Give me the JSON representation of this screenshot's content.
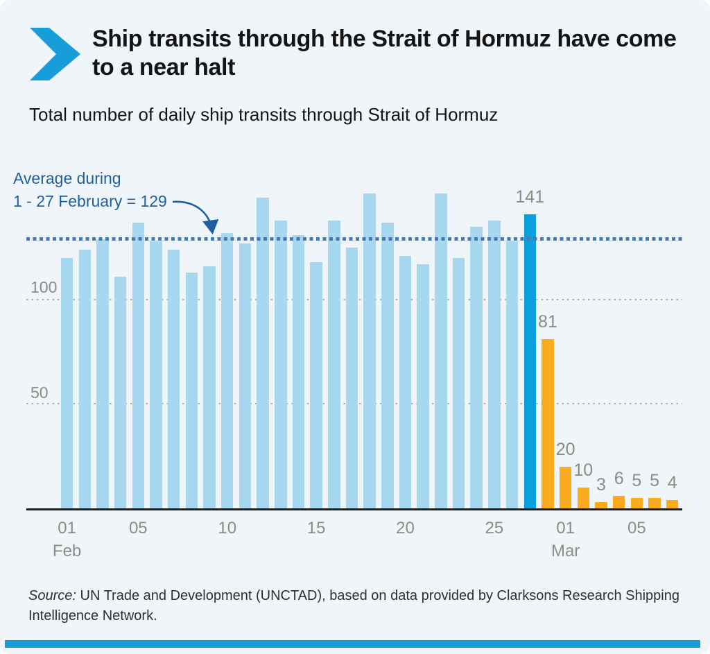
{
  "header": {
    "title": "Ship transits through the Strait of Hormuz have come to a near halt",
    "subtitle": "Total number of daily ship transits through Strait of Hormuz"
  },
  "annotation": {
    "line1": "Average during",
    "line2": "1 - 27 February = 129"
  },
  "axis": {
    "y_labels": [
      "100",
      "50"
    ],
    "month_labels": [
      "Feb",
      "Mar"
    ]
  },
  "source": {
    "prefix": "Source:",
    "text": " UN Trade and Development (UNCTAD), based on data provided by Clarksons Research Shipping Intelligence Network."
  },
  "colors": {
    "background": "#F0F5FA",
    "light_bar": "#A8D8F0",
    "dark_bar": "#0AA0DC",
    "orange_bar": "#FAAB1E",
    "average_line": "#4B7BAD",
    "annotation_blue": "#1F5F9F",
    "grid_dots": "#ADADA5",
    "label_grey": "#8C8C85",
    "accent_stripe": "#189DD9"
  },
  "chart_data": {
    "type": "bar",
    "title": "Total number of daily ship transits through Strait of Hormuz",
    "ylabel": "",
    "xlabel": "",
    "ylim": [
      0,
      160
    ],
    "gridlines": [
      50,
      100
    ],
    "grid": true,
    "legend_position": "none",
    "average_line": {
      "value": 129,
      "label": "Average during 1 - 27 February = 129"
    },
    "bars": [
      {
        "day": "Feb 01",
        "value": 120,
        "type": "light"
      },
      {
        "day": "Feb 02",
        "value": 124,
        "type": "light"
      },
      {
        "day": "Feb 03",
        "value": 129,
        "type": "light"
      },
      {
        "day": "Feb 04",
        "value": 111,
        "type": "light"
      },
      {
        "day": "Feb 05",
        "value": 137,
        "type": "light"
      },
      {
        "day": "Feb 06",
        "value": 128,
        "type": "light"
      },
      {
        "day": "Feb 07",
        "value": 124,
        "type": "light"
      },
      {
        "day": "Feb 08",
        "value": 113,
        "type": "light"
      },
      {
        "day": "Feb 09",
        "value": 116,
        "type": "light"
      },
      {
        "day": "Feb 10",
        "value": 132,
        "type": "light"
      },
      {
        "day": "Feb 11",
        "value": 127,
        "type": "light"
      },
      {
        "day": "Feb 12",
        "value": 149,
        "type": "light"
      },
      {
        "day": "Feb 13",
        "value": 138,
        "type": "light"
      },
      {
        "day": "Feb 14",
        "value": 131,
        "type": "light"
      },
      {
        "day": "Feb 15",
        "value": 118,
        "type": "light"
      },
      {
        "day": "Feb 16",
        "value": 138,
        "type": "light"
      },
      {
        "day": "Feb 17",
        "value": 125,
        "type": "light"
      },
      {
        "day": "Feb 18",
        "value": 151,
        "type": "light"
      },
      {
        "day": "Feb 19",
        "value": 137,
        "type": "light"
      },
      {
        "day": "Feb 20",
        "value": 121,
        "type": "light"
      },
      {
        "day": "Feb 21",
        "value": 117,
        "type": "light"
      },
      {
        "day": "Feb 22",
        "value": 151,
        "type": "light"
      },
      {
        "day": "Feb 23",
        "value": 120,
        "type": "light"
      },
      {
        "day": "Feb 24",
        "value": 135,
        "type": "light"
      },
      {
        "day": "Feb 25",
        "value": 138,
        "type": "light"
      },
      {
        "day": "Feb 26",
        "value": 128,
        "type": "light"
      },
      {
        "day": "Feb 27",
        "value": 141,
        "type": "dark",
        "label": "141"
      },
      {
        "day": "Feb 28",
        "value": 81,
        "type": "orange",
        "label": "81"
      },
      {
        "day": "Mar 01",
        "value": 20,
        "type": "orange",
        "label": "20"
      },
      {
        "day": "Mar 02",
        "value": 10,
        "type": "orange",
        "label": "10"
      },
      {
        "day": "Mar 03",
        "value": 3,
        "type": "orange",
        "label": "3"
      },
      {
        "day": "Mar 04",
        "value": 6,
        "type": "orange",
        "label": "6"
      },
      {
        "day": "Mar 05",
        "value": 5,
        "type": "orange",
        "label": "5"
      },
      {
        "day": "Mar 06",
        "value": 5,
        "type": "orange",
        "label": "5"
      },
      {
        "day": "Mar 07",
        "value": 4,
        "type": "orange",
        "label": "4"
      }
    ],
    "x_ticks": [
      {
        "label": "01",
        "bar_index": 0,
        "month": "Feb"
      },
      {
        "label": "05",
        "bar_index": 4
      },
      {
        "label": "10",
        "bar_index": 9
      },
      {
        "label": "15",
        "bar_index": 14
      },
      {
        "label": "20",
        "bar_index": 19
      },
      {
        "label": "25",
        "bar_index": 24
      },
      {
        "label": "01",
        "bar_index": 28,
        "month": "Mar"
      },
      {
        "label": "05",
        "bar_index": 32
      }
    ]
  }
}
